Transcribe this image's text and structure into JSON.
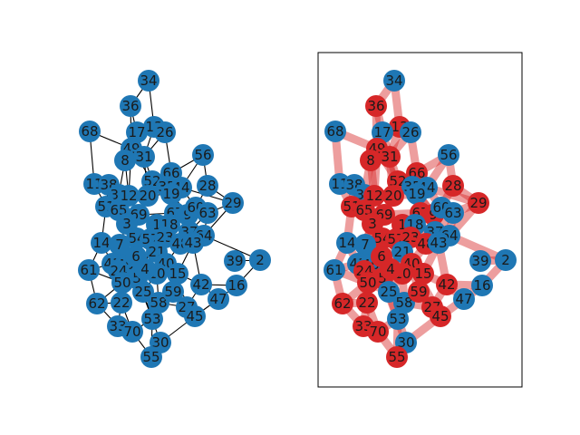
{
  "colors": {
    "left_node": "#1f77b4",
    "left_edge": "#000000",
    "right_node_red": "#d62728",
    "right_node_blue": "#1f77b4",
    "right_edge": "#d62728",
    "frame": "#000000",
    "label": "#1a1a1a"
  },
  "left_graph": {
    "nodes": [
      {
        "id": "34"
      },
      {
        "id": "36"
      },
      {
        "id": "13"
      },
      {
        "id": "17"
      },
      {
        "id": "26"
      },
      {
        "id": "68"
      },
      {
        "id": "49"
      },
      {
        "id": "8"
      },
      {
        "id": "31"
      },
      {
        "id": "56"
      },
      {
        "id": "66"
      },
      {
        "id": "52"
      },
      {
        "id": "35"
      },
      {
        "id": "44"
      },
      {
        "id": "11"
      },
      {
        "id": "38"
      },
      {
        "id": "28"
      },
      {
        "id": "32"
      },
      {
        "id": "12"
      },
      {
        "id": "20"
      },
      {
        "id": "19"
      },
      {
        "id": "29"
      },
      {
        "id": "51"
      },
      {
        "id": "65"
      },
      {
        "id": "69"
      },
      {
        "id": "67"
      },
      {
        "id": "9"
      },
      {
        "id": "60"
      },
      {
        "id": "63"
      },
      {
        "id": "3"
      },
      {
        "id": "1"
      },
      {
        "id": "18"
      },
      {
        "id": "37"
      },
      {
        "id": "54"
      },
      {
        "id": "57"
      },
      {
        "id": "23"
      },
      {
        "id": "64"
      },
      {
        "id": "14"
      },
      {
        "id": "7"
      },
      {
        "id": "48"
      },
      {
        "id": "43"
      },
      {
        "id": "21"
      },
      {
        "id": "39"
      },
      {
        "id": "2"
      },
      {
        "id": "41"
      },
      {
        "id": "46"
      },
      {
        "id": "6"
      },
      {
        "id": "40"
      },
      {
        "id": "61"
      },
      {
        "id": "24"
      },
      {
        "id": "10"
      },
      {
        "id": "15"
      },
      {
        "id": "5"
      },
      {
        "id": "50"
      },
      {
        "id": "4"
      },
      {
        "id": "42"
      },
      {
        "id": "16"
      },
      {
        "id": "25"
      },
      {
        "id": "58"
      },
      {
        "id": "59"
      },
      {
        "id": "27"
      },
      {
        "id": "47"
      },
      {
        "id": "62"
      },
      {
        "id": "22"
      },
      {
        "id": "33"
      },
      {
        "id": "70"
      },
      {
        "id": "53"
      },
      {
        "id": "45"
      },
      {
        "id": "30"
      },
      {
        "id": "55"
      }
    ]
  },
  "right_graph": {
    "blue_nodes": [
      "34",
      "17",
      "26",
      "68",
      "56",
      "11",
      "38",
      "32",
      "35",
      "44",
      "19",
      "60",
      "63",
      "18",
      "43",
      "64",
      "14",
      "7",
      "61",
      "41",
      "46",
      "39",
      "2",
      "16",
      "47",
      "25",
      "58",
      "53",
      "30",
      "37",
      "21"
    ],
    "red_nodes": [
      "36",
      "13",
      "49",
      "8",
      "31",
      "66",
      "52",
      "28",
      "12",
      "20",
      "29",
      "51",
      "65",
      "3",
      "69",
      "67",
      "54",
      "57",
      "23",
      "48",
      "24",
      "6",
      "40",
      "10",
      "15",
      "5",
      "50",
      "4",
      "42",
      "59",
      "27",
      "62",
      "22",
      "33",
      "70",
      "45",
      "55",
      "9",
      "1"
    ]
  }
}
